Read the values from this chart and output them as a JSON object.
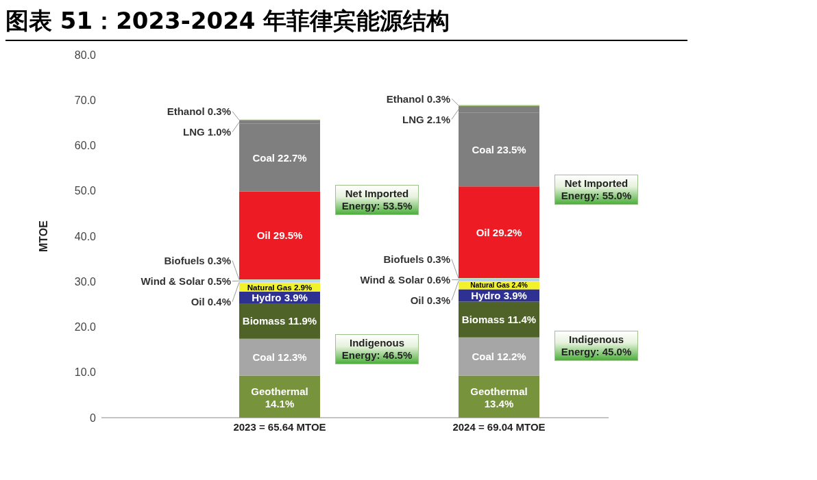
{
  "chart_data": {
    "type": "bar",
    "title": "图表 51：2023-2024 年菲律宾能源结构",
    "ylabel": "MTOE",
    "categories": [
      "2023 = 65.64 MTOE",
      "2024 = 69.04 MTOE"
    ],
    "stacked": true,
    "ylim": [
      0,
      80
    ],
    "yticks": [
      0,
      {
        "value": 10,
        "label": "10.0"
      },
      {
        "value": 20,
        "label": "20.0"
      },
      {
        "value": 30,
        "label": "30.0"
      },
      {
        "value": 40,
        "label": "40.0"
      },
      {
        "value": 50,
        "label": "50.0"
      },
      {
        "value": 60,
        "label": "60.0"
      },
      {
        "value": 70,
        "label": "70.0"
      },
      {
        "value": 80,
        "label": "80.0"
      }
    ],
    "series": [
      {
        "color": "#77933c",
        "values": [
          9.3,
          9.3
        ],
        "value_labels": [
          "Geothermal 14.1%",
          "Geothermal 13.4%"
        ]
      },
      {
        "color": "#a6a6a6",
        "values": [
          8.1,
          8.4
        ],
        "value_labels": [
          "Coal 12.3%",
          "Coal 12.2%"
        ]
      },
      {
        "color": "#4f6228",
        "values": [
          7.8,
          7.9
        ],
        "value_labels": [
          "Biomass 11.9%",
          "Biomass 11.4%"
        ]
      },
      {
        "color": "#2e3192",
        "values": [
          2.6,
          2.7
        ],
        "value_labels": [
          "Hydro 3.9%",
          "Hydro 3.9%"
        ]
      },
      {
        "color": "#f2f22a",
        "values": [
          1.9,
          1.7
        ],
        "value_labels": [
          "Natural Gas 2.9%",
          "Natural Gas 2.4%"
        ]
      },
      {
        "color": "#d9d9d9",
        "values": [
          0.3,
          0.2
        ],
        "value_labels": [
          "Oil 0.4%",
          "Oil 0.3%"
        ]
      },
      {
        "color": "#9dd3f0",
        "values": [
          0.3,
          0.4
        ],
        "value_labels": [
          "Wind & Solar 0.5%",
          "Wind & Solar 0.6%"
        ]
      },
      {
        "color": "#c6e0b4",
        "values": [
          0.2,
          0.2
        ],
        "value_labels": [
          "Biofuels 0.3%",
          "Biofuels 0.3%"
        ]
      },
      {
        "color": "#ed1c24",
        "values": [
          19.4,
          20.2
        ],
        "value_labels": [
          "Oil 29.5%",
          "Oil 29.2%"
        ]
      },
      {
        "color": "#7f7f7f",
        "values": [
          14.9,
          16.2
        ],
        "value_labels": [
          "Coal 22.7%",
          "Coal 23.5%"
        ]
      },
      {
        "color": "#7f7f7f",
        "values": [
          0.7,
          1.5
        ],
        "value_labels": [
          "LNG 1.0%",
          "LNG 2.1%"
        ]
      },
      {
        "color": "#92c04a",
        "values": [
          0.2,
          0.2
        ],
        "value_labels": [
          "Ethanol 0.3%",
          "Ethanol 0.3%"
        ]
      }
    ],
    "annotations": [
      "Indigenous Energy: 46.5%",
      "Net Imported Energy: 53.5%",
      "Indigenous Energy: 45.0%",
      "Net Imported Energy: 55.0%"
    ]
  }
}
